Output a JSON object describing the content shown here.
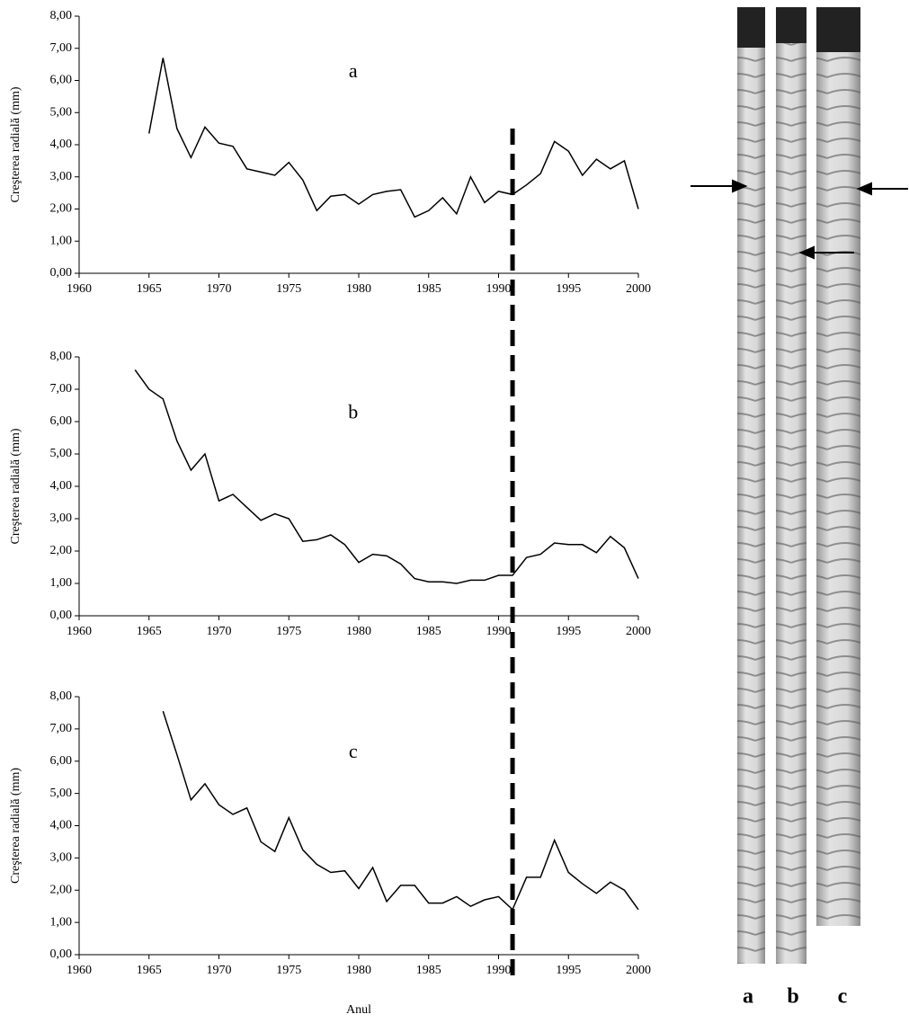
{
  "chart_data": [
    {
      "type": "line",
      "annotation": "a",
      "ylabel": "Creşterea radială (mm)",
      "x": [
        1965,
        1966,
        1967,
        1968,
        1969,
        1970,
        1971,
        1972,
        1973,
        1974,
        1975,
        1976,
        1977,
        1978,
        1979,
        1980,
        1981,
        1982,
        1983,
        1984,
        1985,
        1986,
        1987,
        1988,
        1989,
        1990,
        1991,
        1992,
        1993,
        1994,
        1995,
        1996,
        1997,
        1998,
        1999,
        2000
      ],
      "values": [
        4.35,
        6.7,
        4.5,
        3.6,
        4.55,
        4.05,
        3.95,
        3.25,
        3.15,
        3.05,
        3.45,
        2.9,
        1.95,
        2.4,
        2.45,
        2.15,
        2.45,
        2.55,
        2.6,
        1.75,
        1.95,
        2.35,
        1.85,
        3.0,
        2.2,
        2.55,
        2.45,
        2.75,
        3.1,
        4.1,
        3.8,
        3.05,
        3.55,
        3.25,
        3.5,
        2.0
      ],
      "color": "#000000",
      "xlim": [
        1960,
        2000
      ],
      "xticks": [
        1960,
        1965,
        1970,
        1975,
        1980,
        1985,
        1990,
        1995,
        2000
      ],
      "ylim": [
        0,
        8
      ],
      "yticks": [
        {
          "value": 0,
          "label": "0,00"
        },
        {
          "value": 1,
          "label": "1,00"
        },
        {
          "value": 2,
          "label": "2,00"
        },
        {
          "value": 3,
          "label": "3,00"
        },
        {
          "value": 4,
          "label": "4,00"
        },
        {
          "value": 5,
          "label": "5,00"
        },
        {
          "value": 6,
          "label": "6,00"
        },
        {
          "value": 7,
          "label": "7,00"
        },
        {
          "value": 8,
          "label": "8,00"
        }
      ],
      "vline_x": 1991
    },
    {
      "type": "line",
      "annotation": "b",
      "ylabel": "Creşterea radială (mm)",
      "x": [
        1964,
        1965,
        1966,
        1967,
        1968,
        1969,
        1970,
        1971,
        1972,
        1973,
        1974,
        1975,
        1976,
        1977,
        1978,
        1979,
        1980,
        1981,
        1982,
        1983,
        1984,
        1985,
        1986,
        1987,
        1988,
        1989,
        1990,
        1991,
        1992,
        1993,
        1994,
        1995,
        1996,
        1997,
        1998,
        1999,
        2000
      ],
      "values": [
        7.6,
        7.0,
        6.7,
        5.4,
        4.5,
        5.0,
        3.55,
        3.75,
        3.35,
        2.95,
        3.15,
        3.0,
        2.3,
        2.35,
        2.5,
        2.2,
        1.65,
        1.9,
        1.85,
        1.6,
        1.15,
        1.05,
        1.05,
        1.0,
        1.1,
        1.1,
        1.25,
        1.25,
        1.8,
        1.9,
        2.25,
        2.2,
        2.2,
        1.95,
        2.45,
        2.1,
        1.15
      ],
      "color": "#000000",
      "xlim": [
        1960,
        2000
      ],
      "xticks": [
        1960,
        1965,
        1970,
        1975,
        1980,
        1985,
        1990,
        1995,
        2000
      ],
      "ylim": [
        0,
        8
      ],
      "yticks": [
        {
          "value": 0,
          "label": "0,00"
        },
        {
          "value": 1,
          "label": "1,00"
        },
        {
          "value": 2,
          "label": "2,00"
        },
        {
          "value": 3,
          "label": "3,00"
        },
        {
          "value": 4,
          "label": "4,00"
        },
        {
          "value": 5,
          "label": "5,00"
        },
        {
          "value": 6,
          "label": "6,00"
        },
        {
          "value": 7,
          "label": "7,00"
        },
        {
          "value": 8,
          "label": "8,00"
        }
      ]
    },
    {
      "type": "line",
      "annotation": "c",
      "ylabel": "Creşterea radială (mm)",
      "xlabel": "Anul",
      "x": [
        1966,
        1967,
        1968,
        1969,
        1970,
        1971,
        1972,
        1973,
        1974,
        1975,
        1976,
        1977,
        1978,
        1979,
        1980,
        1981,
        1982,
        1983,
        1984,
        1985,
        1986,
        1987,
        1988,
        1989,
        1990,
        1991,
        1992,
        1993,
        1994,
        1995,
        1996,
        1997,
        1998,
        1999,
        2000
      ],
      "values": [
        7.55,
        6.2,
        4.8,
        5.3,
        4.65,
        4.35,
        4.55,
        3.5,
        3.2,
        4.25,
        3.25,
        2.8,
        2.55,
        2.6,
        2.05,
        2.7,
        1.65,
        2.15,
        2.15,
        1.6,
        1.6,
        1.8,
        1.5,
        1.7,
        1.8,
        1.4,
        2.4,
        2.4,
        3.55,
        2.55,
        2.2,
        1.9,
        2.25,
        2.0,
        1.4
      ],
      "color": "#000000",
      "xlim": [
        1960,
        2000
      ],
      "xticks": [
        1960,
        1965,
        1970,
        1975,
        1980,
        1985,
        1990,
        1995,
        2000
      ],
      "ylim": [
        0,
        8
      ],
      "yticks": [
        {
          "value": 0,
          "label": "0,00"
        },
        {
          "value": 1,
          "label": "1,00"
        },
        {
          "value": 2,
          "label": "2,00"
        },
        {
          "value": 3,
          "label": "3,00"
        },
        {
          "value": 4,
          "label": "4,00"
        },
        {
          "value": 5,
          "label": "5,00"
        },
        {
          "value": 6,
          "label": "6,00"
        },
        {
          "value": 7,
          "label": "7,00"
        },
        {
          "value": 8,
          "label": "8,00"
        }
      ]
    }
  ],
  "core_labels": [
    "a",
    "b",
    "c"
  ]
}
